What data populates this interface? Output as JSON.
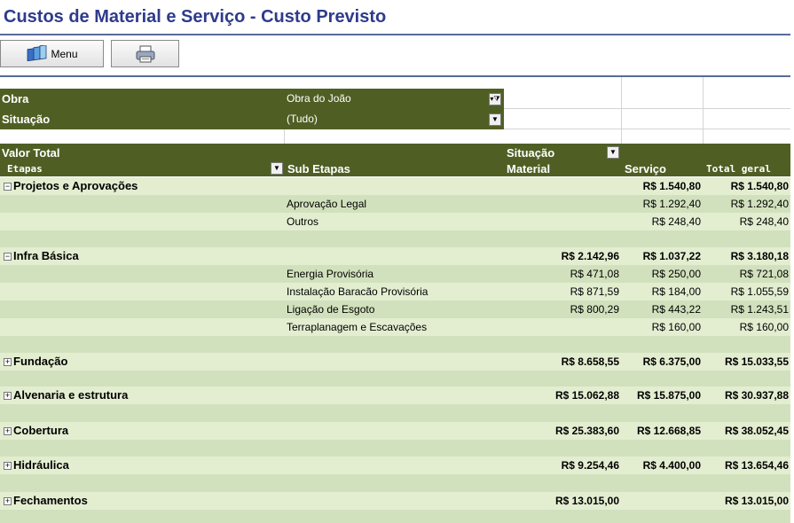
{
  "window": {
    "title": "Custos de Material e Serviço - Custo Previsto"
  },
  "toolbar": {
    "menu_label": "Menu",
    "menu_icon": "books-icon",
    "print_icon": "printer-icon"
  },
  "filters": [
    {
      "label": "Obra",
      "value": "Obra do João",
      "state": "filtered"
    },
    {
      "label": "Situação",
      "value": "(Tudo)",
      "state": "dropdown"
    }
  ],
  "pivot": {
    "value_label": "Valor Total",
    "column_field": "Situação",
    "row_field_1": "Etapas",
    "row_field_2": "Sub Etapas",
    "col_material": "Material",
    "col_servico": "Serviço",
    "col_total": "Total geral"
  },
  "groups": [
    {
      "name": "Projetos e Aprovações",
      "expanded": true,
      "material": "",
      "servico": "R$ 1.540,80",
      "total": "R$ 1.540,80",
      "children": [
        {
          "name": "Aprovação Legal",
          "material": "",
          "servico": "R$ 1.292,40",
          "total": "R$ 1.292,40"
        },
        {
          "name": "Outros",
          "material": "",
          "servico": "R$ 248,40",
          "total": "R$ 248,40"
        }
      ]
    },
    {
      "name": "Infra Básica",
      "expanded": true,
      "material": "R$ 2.142,96",
      "servico": "R$ 1.037,22",
      "total": "R$ 3.180,18",
      "children": [
        {
          "name": "Energia Provisória",
          "material": "R$ 471,08",
          "servico": "R$ 250,00",
          "total": "R$ 721,08"
        },
        {
          "name": "Instalação Baracão Provisória",
          "material": "R$ 871,59",
          "servico": "R$ 184,00",
          "total": "R$ 1.055,59"
        },
        {
          "name": "Ligação de Esgoto",
          "material": "R$ 800,29",
          "servico": "R$ 443,22",
          "total": "R$ 1.243,51"
        },
        {
          "name": "Terraplanagem e Escavações",
          "material": "",
          "servico": "R$ 160,00",
          "total": "R$ 160,00"
        }
      ]
    },
    {
      "name": "Fundação",
      "expanded": false,
      "material": "R$ 8.658,55",
      "servico": "R$ 6.375,00",
      "total": "R$ 15.033,55",
      "children": []
    },
    {
      "name": "Alvenaria e estrutura",
      "expanded": false,
      "material": "R$ 15.062,88",
      "servico": "R$ 15.875,00",
      "total": "R$ 30.937,88",
      "children": []
    },
    {
      "name": "Cobertura",
      "expanded": false,
      "material": "R$ 25.383,60",
      "servico": "R$ 12.668,85",
      "total": "R$ 38.052,45",
      "children": []
    },
    {
      "name": "Hidráulica",
      "expanded": false,
      "material": "R$ 9.254,46",
      "servico": "R$ 4.400,00",
      "total": "R$ 13.654,46",
      "children": []
    },
    {
      "name": "Fechamentos",
      "expanded": false,
      "material": "R$ 13.015,00",
      "servico": "",
      "total": "R$ 13.015,00",
      "children": []
    }
  ],
  "colors": {
    "header_bg": "#4f5f24",
    "row_light": "#e3eed1",
    "row_dark": "#d2e1bd",
    "title": "#2e3b8c"
  }
}
